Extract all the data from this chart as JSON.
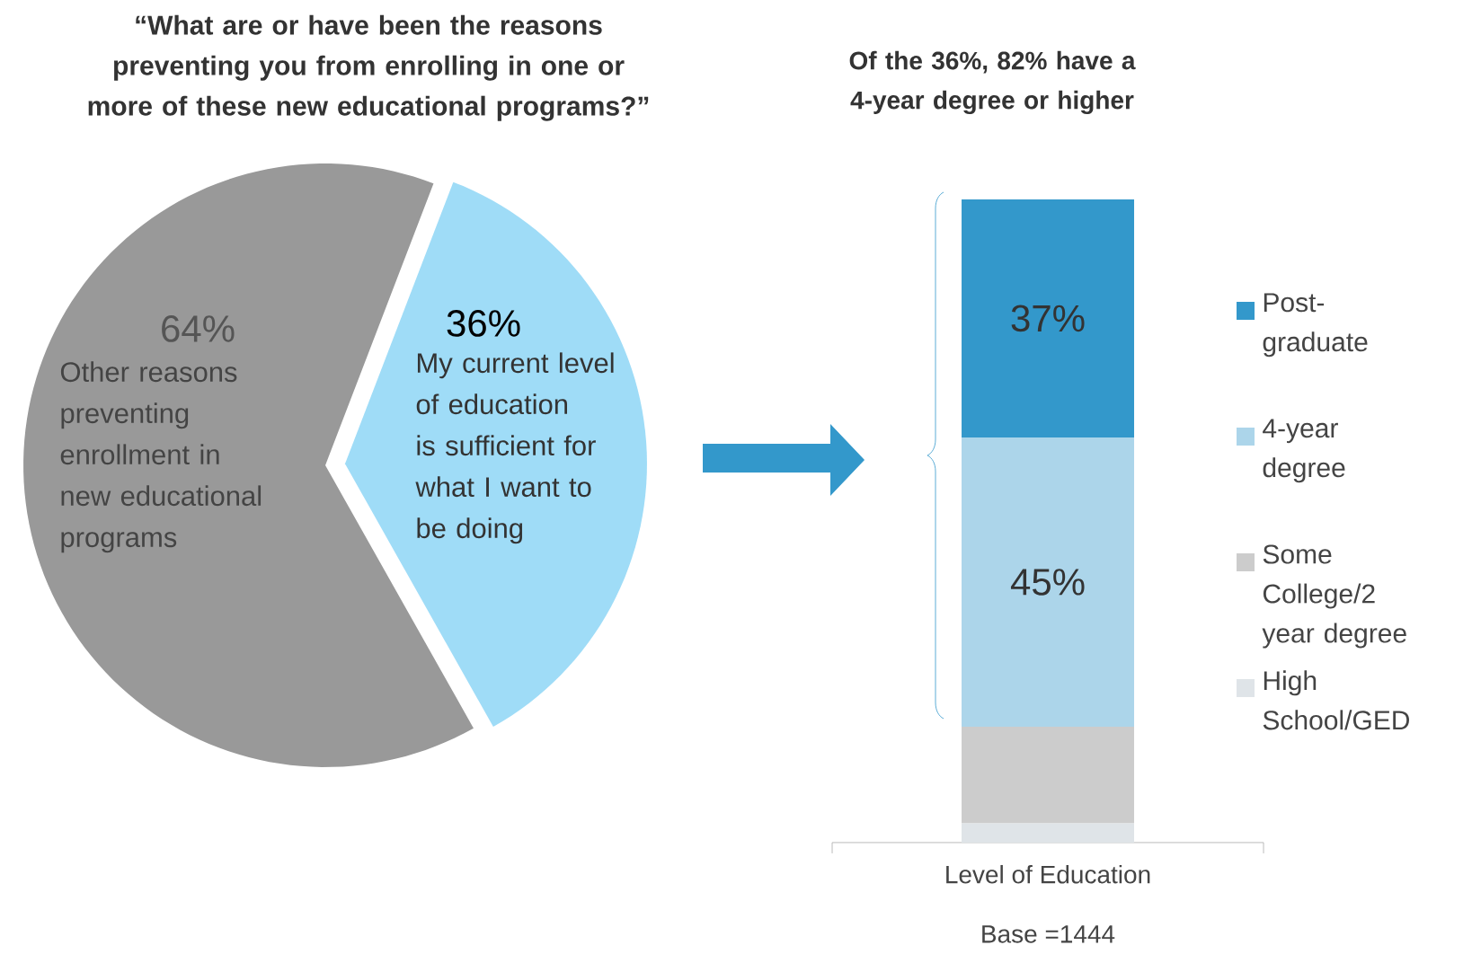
{
  "chart_data": [
    {
      "type": "pie",
      "title": "“What are or have been the reasons preventing you from enrolling in one or more of these new educational programs?”",
      "categories": [
        "Other reasons preventing enrollment in new educational programs",
        "My current level of education is sufficient for what I want to be doing"
      ],
      "values": [
        64,
        36
      ],
      "colors": [
        "#999999",
        "#9fdcf7"
      ],
      "value_labels": [
        "64%",
        "36%"
      ]
    },
    {
      "type": "bar",
      "stacked": true,
      "title": "Of the 36%, 82% have a 4-year degree or higher",
      "xlabel": "Level of Education",
      "categories": [
        null
      ],
      "legend": "right",
      "annotations": [
        "Base =1444"
      ],
      "series": [
        {
          "name": "High School/GED",
          "color": "#dfe4e8",
          "values": [
            3
          ],
          "value_labels": [
            null
          ]
        },
        {
          "name": "Some College/2 year degree",
          "color": "#cccccc",
          "values": [
            15
          ],
          "value_labels": [
            null
          ]
        },
        {
          "name": "4-year degree",
          "color": "#acd5ea",
          "values": [
            45
          ],
          "value_labels": [
            "45%"
          ]
        },
        {
          "name": "Post-graduate",
          "color": "#3398cb",
          "values": [
            37
          ],
          "value_labels": [
            "37%"
          ]
        }
      ]
    }
  ]
}
